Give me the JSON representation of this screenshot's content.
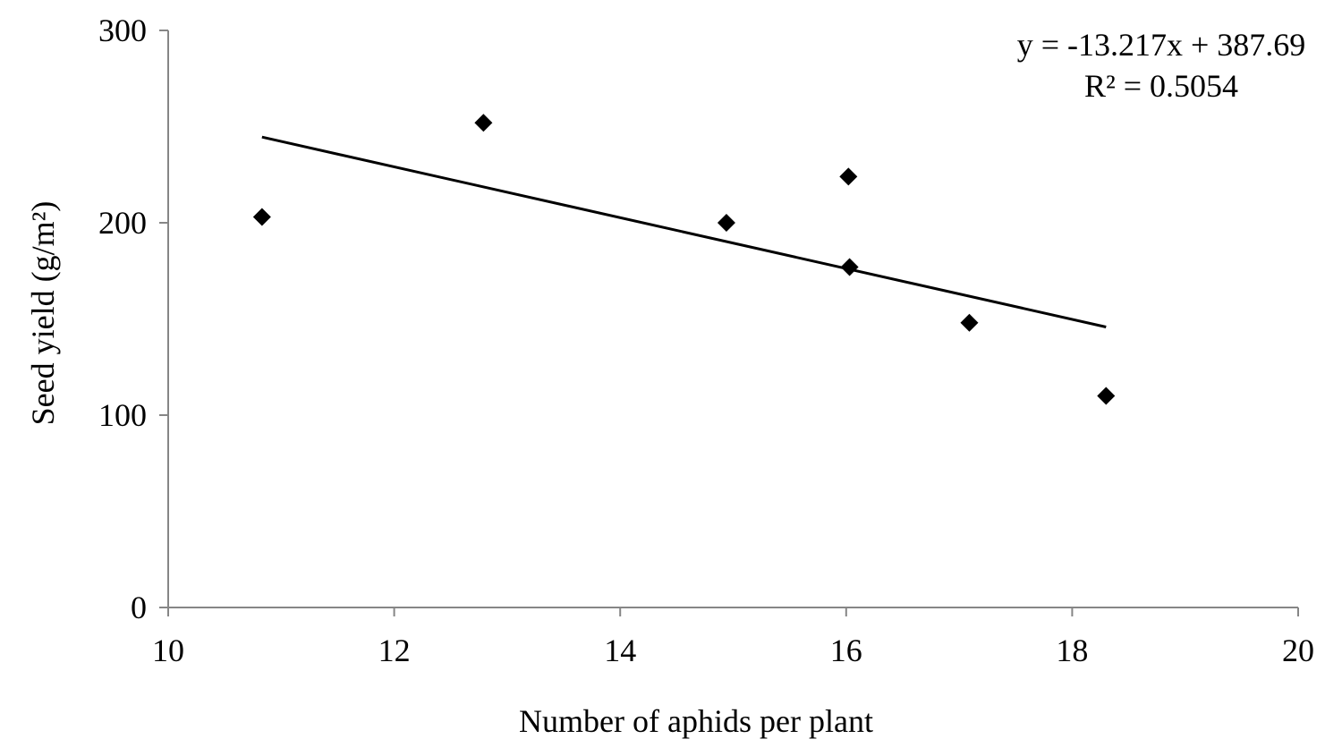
{
  "chart_data": {
    "type": "scatter",
    "xlabel": "Number of aphids per plant",
    "ylabel": "Seed yield (g/m²)",
    "xlim": [
      10,
      20
    ],
    "ylim": [
      0,
      300
    ],
    "xticks": [
      10,
      12,
      14,
      16,
      18,
      20
    ],
    "yticks": [
      0,
      100,
      200,
      300
    ],
    "grid": false,
    "marker": "diamond",
    "marker_color": "#000000",
    "series": [
      {
        "x": [
          10.83,
          12.79,
          14.94,
          16.02,
          16.03,
          17.09,
          18.3
        ],
        "y": [
          203,
          252,
          200,
          224,
          177,
          148,
          110
        ]
      }
    ],
    "trendline": {
      "type": "linear",
      "slope": -13.217,
      "intercept": 387.69,
      "x_range": [
        10.83,
        18.3
      ],
      "equation_label": "y = -13.217x + 387.69",
      "r2_label": "R² = 0.5054"
    }
  }
}
